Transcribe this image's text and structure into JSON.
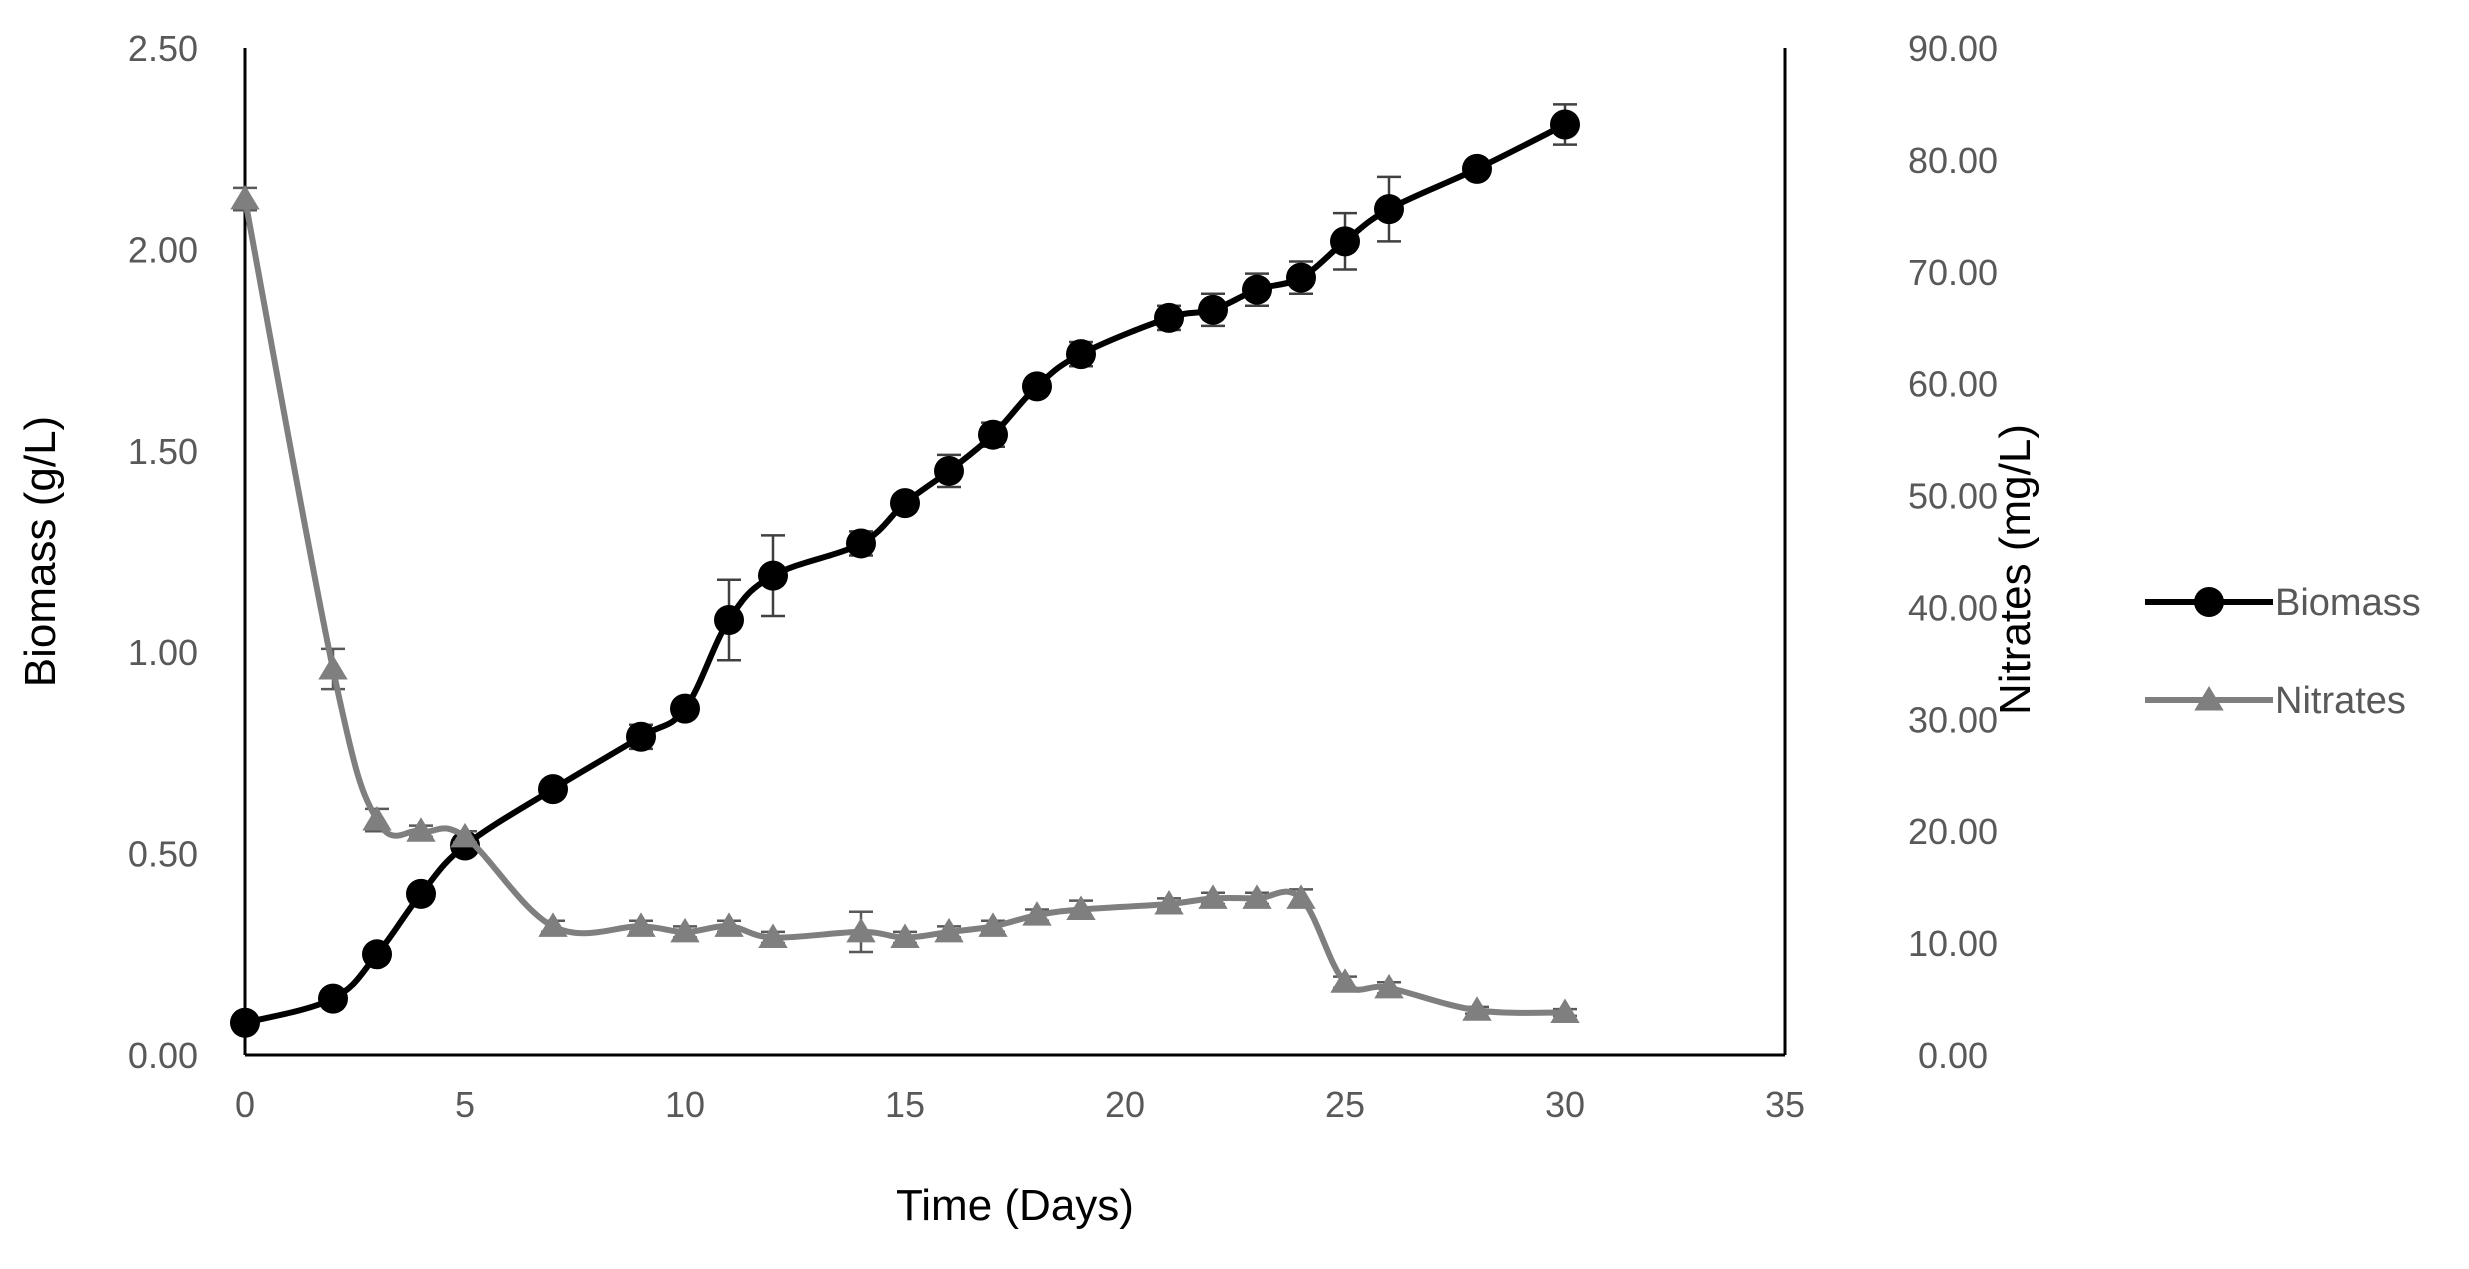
{
  "chart_data": {
    "type": "line",
    "xlabel": "Time (Days)",
    "ylabel": "Biomass (g/L)",
    "y2label": "Nitrates (mg/L)",
    "xlim": [
      0,
      35
    ],
    "ylim": [
      0,
      2.5
    ],
    "y2lim": [
      0,
      90
    ],
    "x_ticks": [
      0,
      5,
      10,
      15,
      20,
      25,
      30,
      35
    ],
    "x_tick_labels": [
      "0",
      "5",
      "10",
      "15",
      "20",
      "25",
      "30",
      "35"
    ],
    "y_ticks": [
      0,
      0.5,
      1,
      1.5,
      2,
      2.5
    ],
    "y_tick_labels": [
      "0.00",
      "0.50",
      "1.00",
      "1.50",
      "2.00",
      "2.50"
    ],
    "y2_ticks": [
      0,
      10,
      20,
      30,
      40,
      50,
      60,
      70,
      80,
      90
    ],
    "y2_tick_labels": [
      "0.00",
      "10.00",
      "20.00",
      "30.00",
      "40.00",
      "50.00",
      "60.00",
      "70.00",
      "80.00",
      "90.00"
    ],
    "legend_position": "right",
    "series": [
      {
        "name": "Biomass",
        "axis": "left",
        "marker": "circle",
        "color": "#000000",
        "x": [
          0,
          2,
          3,
          4,
          5,
          7,
          9,
          10,
          11,
          12,
          14,
          15,
          16,
          17,
          18,
          19,
          21,
          22,
          23,
          24,
          25,
          26,
          28,
          30
        ],
        "values": [
          0.08,
          0.14,
          0.25,
          0.4,
          0.52,
          0.66,
          0.79,
          0.86,
          1.08,
          1.19,
          1.27,
          1.37,
          1.45,
          1.54,
          1.66,
          1.74,
          1.83,
          1.85,
          1.9,
          1.93,
          2.02,
          2.1,
          2.2,
          2.31
        ],
        "errors": [
          0.01,
          0.01,
          0.01,
          0.01,
          0.02,
          0.02,
          0.03,
          0.02,
          0.1,
          0.1,
          0.03,
          0.02,
          0.04,
          0.03,
          0.02,
          0.03,
          0.03,
          0.04,
          0.04,
          0.04,
          0.07,
          0.08,
          0.02,
          0.05
        ]
      },
      {
        "name": "Nitrates",
        "axis": "right",
        "marker": "triangle",
        "color": "#7f7f7f",
        "x": [
          0,
          2,
          3,
          4,
          5,
          7,
          9,
          10,
          11,
          12,
          14,
          15,
          16,
          17,
          18,
          19,
          21,
          22,
          23,
          24,
          25,
          26,
          28,
          30
        ],
        "values": [
          76.5,
          34.5,
          21.0,
          20.0,
          19.5,
          11.5,
          11.5,
          11.0,
          11.5,
          10.5,
          11.0,
          10.5,
          11.0,
          11.5,
          12.5,
          13.0,
          13.5,
          14.0,
          14.0,
          14.0,
          6.5,
          6.0,
          4.0,
          3.8
        ],
        "errors": [
          1.0,
          1.8,
          1.0,
          0.5,
          0.5,
          0.5,
          0.5,
          0.5,
          0.5,
          0.5,
          1.8,
          0.5,
          0.5,
          0.5,
          0.5,
          0.8,
          0.5,
          0.5,
          0.5,
          0.8,
          0.5,
          0.5,
          0.3,
          0.3
        ]
      }
    ]
  }
}
